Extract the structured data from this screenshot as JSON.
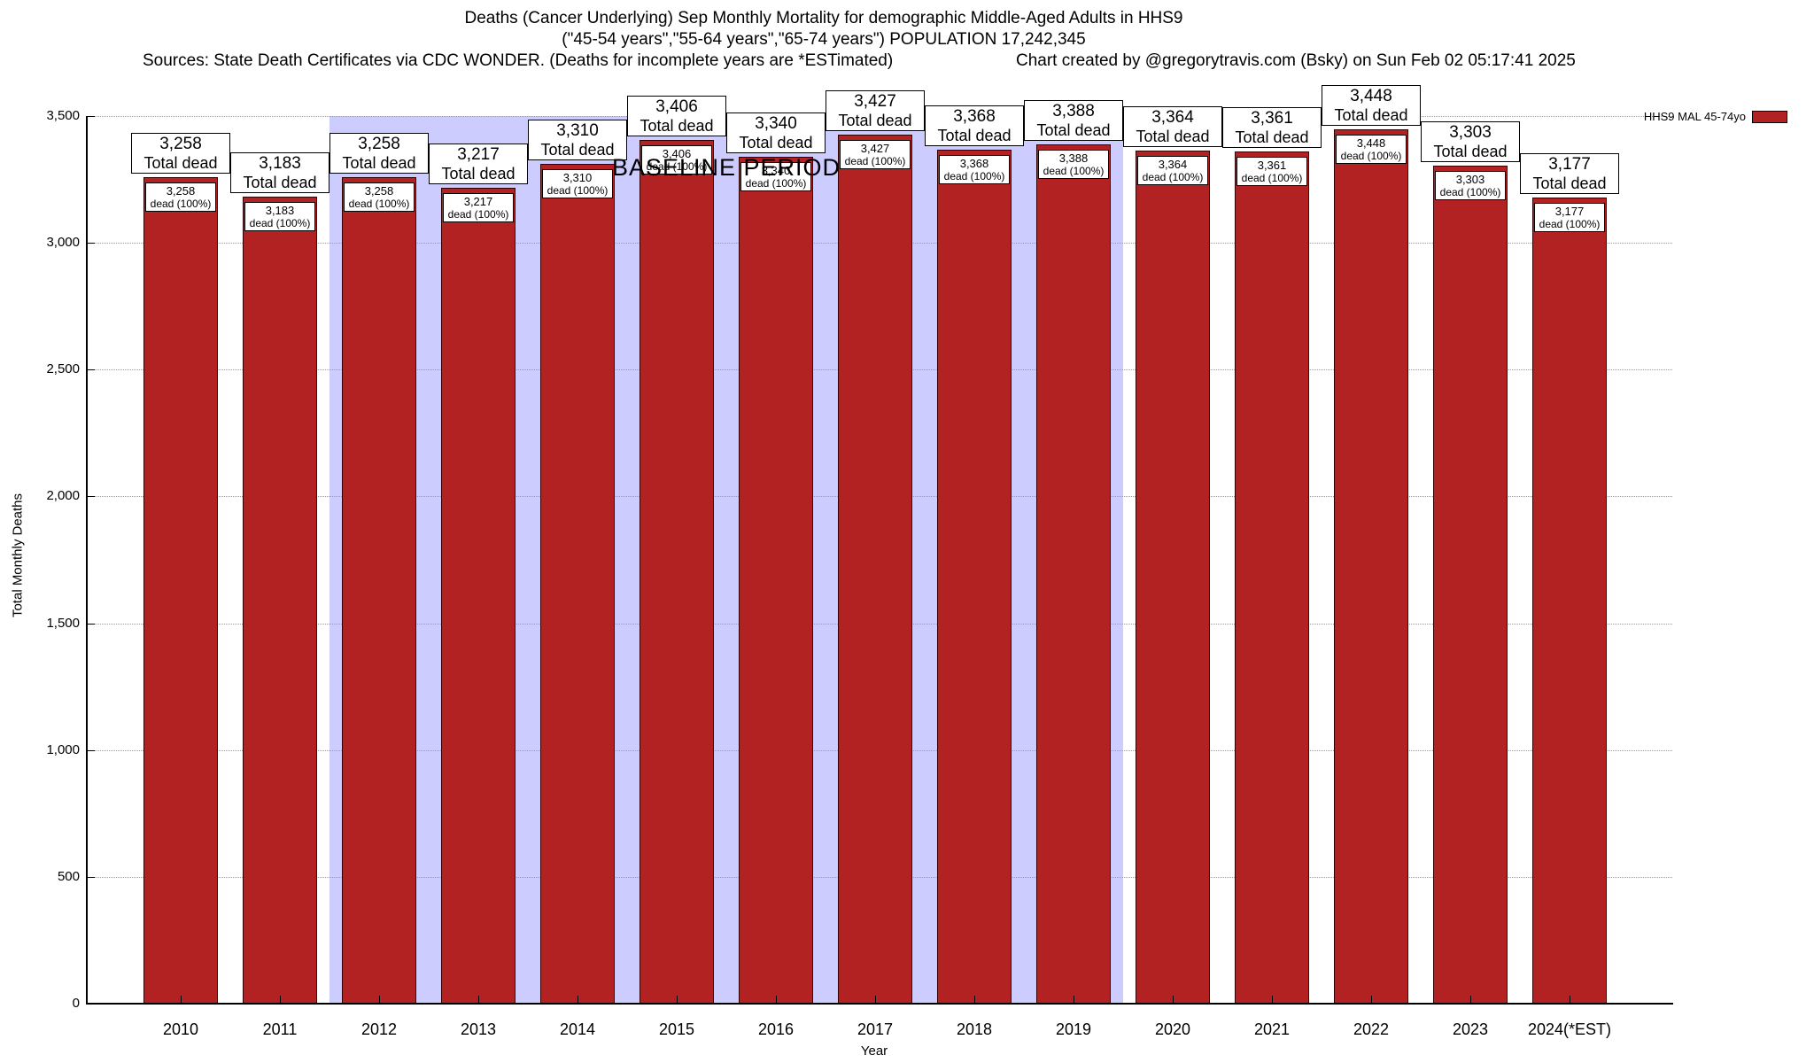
{
  "chart_data": {
    "type": "bar",
    "title": "Deaths (Cancer Underlying) Sep Monthly Mortality for demographic Middle-Aged Adults in HHS9",
    "subtitle": "(\"45-54 years\",\"55-64 years\",\"65-74 years\") POPULATION 17,242,345",
    "sources_note": "Sources: State Death Certificates via CDC WONDER. (Deaths for incomplete years are *ESTimated)",
    "credit_note": "Chart created by @gregorytravis.com (Bsky) on Sun Feb 02 05:17:41 2025",
    "xlabel": "Year",
    "ylabel": "Total Monthly Deaths",
    "ylim": [
      0,
      3500
    ],
    "ytick_interval": 500,
    "ytick_labels": [
      "0",
      "500",
      "1,000",
      "1,500",
      "2,000",
      "2,500",
      "3,000",
      "3,500"
    ],
    "grid": "horizontal-dotted",
    "legend": {
      "label": "HHS9 MAL 45-74yo",
      "position": "top-right"
    },
    "bar_color": "#b22222",
    "baseline_band": {
      "label": "BASELINE PERIOD",
      "start_category": "2012",
      "end_category": "2019",
      "color": "#ccccff"
    },
    "categories": [
      "2010",
      "2011",
      "2012",
      "2013",
      "2014",
      "2015",
      "2016",
      "2017",
      "2018",
      "2019",
      "2020",
      "2021",
      "2022",
      "2023",
      "2024(*EST)"
    ],
    "values": [
      3258,
      3183,
      3258,
      3217,
      3310,
      3406,
      3340,
      3427,
      3368,
      3388,
      3364,
      3361,
      3448,
      3303,
      3177
    ],
    "value_labels": [
      "3,258",
      "3,183",
      "3,258",
      "3,217",
      "3,310",
      "3,406",
      "3,340",
      "3,427",
      "3,368",
      "3,388",
      "3,364",
      "3,361",
      "3,448",
      "3,303",
      "3,177"
    ],
    "bar_top_label_suffix": "Total dead",
    "bar_inner_label_suffix": "dead (100%)"
  }
}
